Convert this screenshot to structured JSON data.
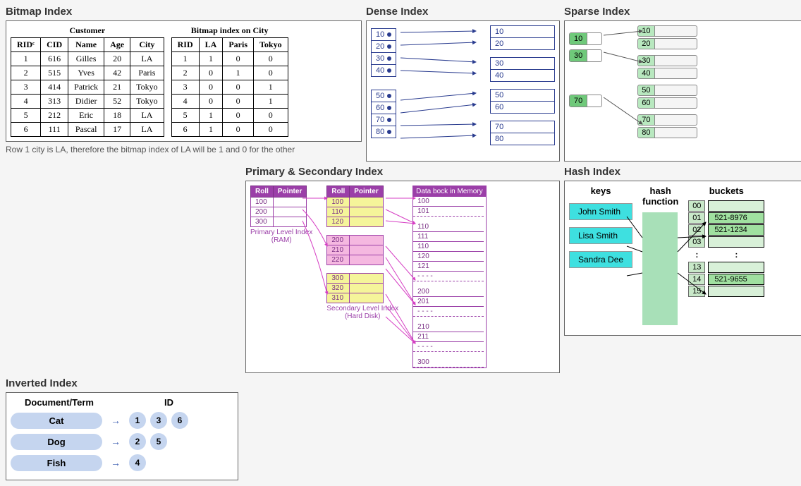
{
  "bitmap": {
    "title": "Bitmap Index",
    "customer_caption": "Customer",
    "index_caption": "Bitmap index on City",
    "customer_cols": [
      "RIDᶜ",
      "CID",
      "Name",
      "Age",
      "City"
    ],
    "customer_rows": [
      [
        "1",
        "616",
        "Gilles",
        "20",
        "LA"
      ],
      [
        "2",
        "515",
        "Yves",
        "42",
        "Paris"
      ],
      [
        "3",
        "414",
        "Patrick",
        "21",
        "Tokyo"
      ],
      [
        "4",
        "313",
        "Didier",
        "52",
        "Tokyo"
      ],
      [
        "5",
        "212",
        "Eric",
        "18",
        "LA"
      ],
      [
        "6",
        "111",
        "Pascal",
        "17",
        "LA"
      ]
    ],
    "index_cols": [
      "RID",
      "LA",
      "Paris",
      "Tokyo"
    ],
    "index_rows": [
      [
        "1",
        "1",
        "0",
        "0"
      ],
      [
        "2",
        "0",
        "1",
        "0"
      ],
      [
        "3",
        "0",
        "0",
        "1"
      ],
      [
        "4",
        "0",
        "0",
        "1"
      ],
      [
        "5",
        "1",
        "0",
        "0"
      ],
      [
        "6",
        "1",
        "0",
        "0"
      ]
    ],
    "note": "Row 1 city is LA, therefore the bitmap index of LA will be 1 and 0 for the other"
  },
  "dense": {
    "title": "Dense Index",
    "index_blocks": [
      [
        "10",
        "20",
        "30",
        "40"
      ],
      [
        "50",
        "60",
        "70",
        "80"
      ]
    ],
    "data_blocks": [
      [
        "10",
        "20"
      ],
      [
        "30",
        "40"
      ],
      [
        "50",
        "60"
      ],
      [
        "70",
        "80"
      ]
    ],
    "line_color": "#2a3c8f"
  },
  "sparse": {
    "title": "Sparse Index",
    "keys": [
      "10",
      "30",
      "70"
    ],
    "data_blocks": [
      [
        "10",
        "20"
      ],
      [
        "30",
        "40"
      ],
      [
        "50",
        "60"
      ],
      [
        "70",
        "80"
      ]
    ],
    "key_color": "#6fc97a",
    "data_color": "#b8e8bf"
  },
  "inverted": {
    "title": "Inverted Index",
    "hdr_term": "Document/Term",
    "hdr_id": "ID",
    "rows": [
      {
        "term": "Cat",
        "ids": [
          "1",
          "3",
          "6"
        ]
      },
      {
        "term": "Dog",
        "ids": [
          "2",
          "5"
        ]
      },
      {
        "term": "Fish",
        "ids": [
          "4"
        ]
      }
    ],
    "term_bg": "#c5d5ef"
  },
  "ps": {
    "title": "Primary & Secondary Index",
    "hdr_roll": "Roll",
    "hdr_pointer": "Pointer",
    "mem_hdr": "Data bock in Memory",
    "primary_rows": [
      "100",
      "200",
      "300"
    ],
    "primary_label": "Primary Level Index\n(RAM)",
    "secondary_groups": [
      {
        "rows": [
          "100",
          "110",
          "120"
        ],
        "shade": "yellow"
      },
      {
        "rows": [
          "200",
          "210",
          "220"
        ],
        "shade": "pink"
      },
      {
        "rows": [
          "300",
          "320",
          "310"
        ],
        "shade": "yellow"
      }
    ],
    "secondary_label": "Secondary Level Index\n(Hard Disk)",
    "memory_groups": [
      [
        "100",
        "101"
      ],
      [
        "110",
        "111",
        "110",
        "120",
        "121",
        "- - - -"
      ],
      [
        "200",
        "201",
        "- - - -"
      ],
      [
        "210",
        "211",
        "- - - -"
      ],
      [
        "300"
      ]
    ],
    "hdr_bg": "#9b3fa8"
  },
  "hash": {
    "title": "Hash Index",
    "label_keys": "keys",
    "label_func": "hash\nfunction",
    "label_buckets": "buckets",
    "keys": [
      "John Smith",
      "Lisa Smith",
      "Sandra Dee"
    ],
    "top_buckets": [
      {
        "idx": "00",
        "val": "",
        "filled": false
      },
      {
        "idx": "01",
        "val": "521-8976",
        "filled": true
      },
      {
        "idx": "02",
        "val": "521-1234",
        "filled": true
      },
      {
        "idx": "03",
        "val": "",
        "filled": false
      }
    ],
    "dots": ":",
    "bot_buckets": [
      {
        "idx": "13",
        "val": "",
        "filled": false
      },
      {
        "idx": "14",
        "val": "521-9655",
        "filled": true
      },
      {
        "idx": "15",
        "val": "",
        "filled": false
      }
    ],
    "key_bg": "#3ee0e0",
    "func_bg": "#a8e0b8",
    "bucket_bg": "#a0e0a0"
  }
}
